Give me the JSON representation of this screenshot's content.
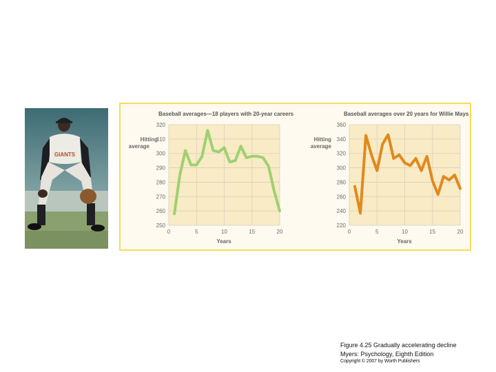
{
  "photo": {
    "alt": "",
    "jersey_text": "GIANTS"
  },
  "chart_data": [
    {
      "type": "line",
      "title": "Baseball averages—18 players with 20-year careers",
      "ylabel": "Hitting average",
      "xlabel": "Years",
      "x": [
        1,
        2,
        3,
        4,
        5,
        6,
        7,
        8,
        9,
        10,
        11,
        12,
        13,
        14,
        15,
        16,
        17,
        18,
        19,
        20
      ],
      "values": [
        258,
        285,
        302,
        292,
        292,
        298,
        316,
        302,
        301,
        304,
        294,
        295,
        305,
        297,
        298,
        298,
        297,
        291,
        274,
        260
      ],
      "ylim": [
        250,
        320
      ],
      "yticks": [
        250,
        260,
        270,
        280,
        290,
        300,
        310,
        320
      ],
      "xlim": [
        0,
        20
      ],
      "xticks": [
        0,
        5,
        10,
        15,
        20
      ],
      "grid": true,
      "color": "#9fd071"
    },
    {
      "type": "line",
      "title": "Baseball averages over 20 years for Willie Mays",
      "ylabel": "Hitting average",
      "xlabel": "Years",
      "x": [
        1,
        2,
        3,
        4,
        5,
        6,
        7,
        8,
        9,
        10,
        11,
        12,
        13,
        14,
        15,
        16,
        17,
        18,
        19,
        20
      ],
      "values": [
        274,
        237,
        345,
        318,
        296,
        333,
        346,
        313,
        318,
        307,
        303,
        313,
        296,
        316,
        282,
        263,
        288,
        283,
        290,
        271
      ],
      "ylim": [
        220,
        360
      ],
      "yticks": [
        220,
        240,
        260,
        280,
        300,
        320,
        340,
        360
      ],
      "xlim": [
        0,
        20
      ],
      "xticks": [
        0,
        5,
        10,
        15,
        20
      ],
      "grid": true,
      "color": "#e0891c"
    }
  ],
  "caption": {
    "title": "Figure 4.25  Gradually accelerating decline",
    "book": "Myers: Psychology, Eighth Edition",
    "copyright": "Copyright © 2007 by Worth Publishers"
  }
}
